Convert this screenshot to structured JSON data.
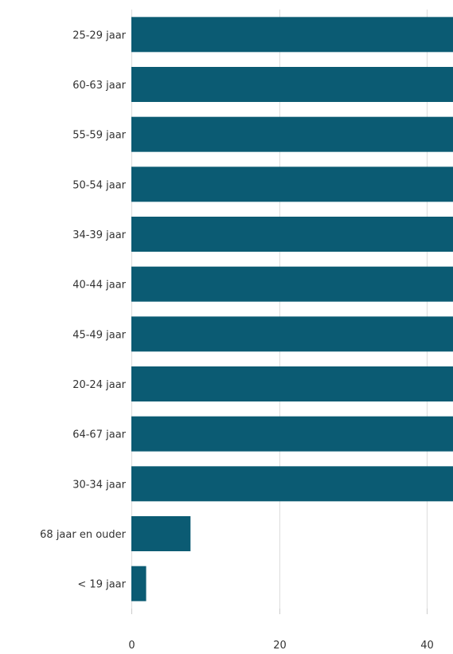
{
  "chart_data": {
    "type": "bar",
    "orientation": "horizontal",
    "categories": [
      "25-29 jaar",
      "60-63 jaar",
      "55-59 jaar",
      "50-54 jaar",
      "34-39 jaar",
      "40-44 jaar",
      "45-49 jaar",
      "20-24 jaar",
      "64-67 jaar",
      "30-34 jaar",
      "68 jaar en ouder",
      "< 19 jaar"
    ],
    "values": [
      44,
      44,
      44,
      44,
      44,
      44,
      44,
      44,
      44,
      44,
      8,
      2
    ],
    "xticks": [
      0,
      20,
      40
    ],
    "xlim": [
      0,
      43.5
    ],
    "grid": true,
    "bar_color": "#0b5b73",
    "title": "",
    "xlabel": "",
    "ylabel": ""
  }
}
